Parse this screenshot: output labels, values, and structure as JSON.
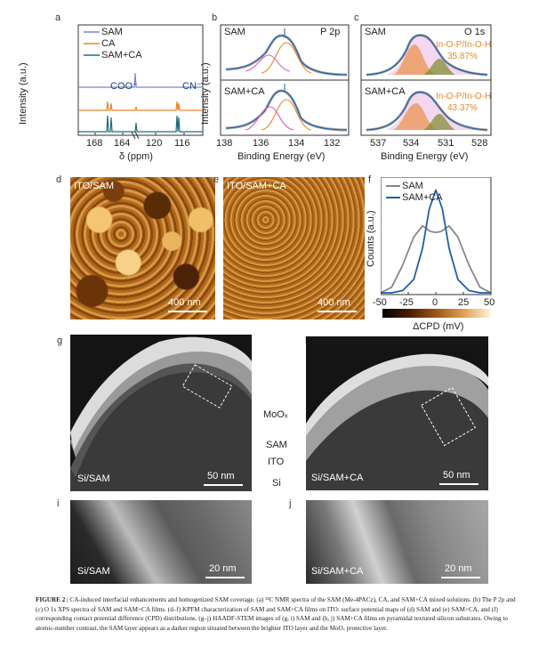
{
  "panels": {
    "a": {
      "letter": "a",
      "ylabel": "Intensity (a.u.)",
      "xlabel": "δ (ppm)",
      "ticks": [
        "168",
        "164",
        "120",
        "116"
      ],
      "legend": [
        "SAM",
        "CA",
        "SAM+CA"
      ],
      "annotations": [
        "COO⁻",
        "CN⁻"
      ]
    },
    "b": {
      "letter": "b",
      "title": "P 2p",
      "ylabel": "Intensity (a.u.)",
      "xlabel": "Binding Energy (eV)",
      "ticks": [
        "138",
        "136",
        "134",
        "132"
      ],
      "labels": [
        "SAM",
        "SAM+CA"
      ]
    },
    "c": {
      "letter": "c",
      "title": "O 1s",
      "xlabel": "Binding Energy (eV)",
      "ticks": [
        "537",
        "534",
        "531",
        "528"
      ],
      "labels": [
        "SAM",
        "SAM+CA"
      ],
      "ratio_label": "In-O-P/In-O-H",
      "ratio_sam": "35.87%",
      "ratio_samca": "43.37%"
    },
    "d": {
      "letter": "d",
      "label": "ITO/SAM",
      "scale": "400 nm"
    },
    "e": {
      "letter": "e",
      "label": "ITO/SAM+CA",
      "scale": "400 nm"
    },
    "f": {
      "letter": "f",
      "ylabel": "Counts (a.u.)",
      "xlabel": "ΔCPD (mV)",
      "ticks": [
        "-50",
        "-25",
        "0",
        "25",
        "50"
      ],
      "legend": [
        "SAM",
        "SAM+CA"
      ]
    },
    "g": {
      "letter": "g",
      "label": "Si/SAM",
      "scale": "50 nm"
    },
    "h": {
      "letter": "h",
      "label": "Si/SAM+CA",
      "scale": "50 nm"
    },
    "i": {
      "letter": "i",
      "label": "Si/SAM",
      "scale": "20 nm"
    },
    "j": {
      "letter": "j",
      "label": "Si/SAM+CA",
      "scale": "20 nm"
    },
    "layers": [
      "MoOₓ",
      "SAM",
      "ITO",
      "Si"
    ]
  },
  "colors": {
    "sam": "#7b86d8",
    "ca": "#e8862b",
    "samca": "#1a6e7a",
    "fit_blue": "#1f5fa8",
    "grey": "#888888"
  },
  "chart_data": [
    {
      "type": "line",
      "panel": "f",
      "title": "",
      "xlabel": "ΔCPD (mV)",
      "ylabel": "Counts (a.u.)",
      "xlim": [
        -50,
        50
      ],
      "series": [
        {
          "name": "SAM",
          "x": [
            -50,
            -40,
            -30,
            -20,
            -12,
            -5,
            0,
            5,
            12,
            20,
            30,
            40,
            50
          ],
          "y": [
            0.0,
            0.05,
            0.25,
            0.5,
            0.6,
            0.55,
            0.54,
            0.55,
            0.6,
            0.5,
            0.25,
            0.05,
            0.0
          ]
        },
        {
          "name": "SAM+CA",
          "x": [
            -50,
            -40,
            -30,
            -20,
            -12,
            -6,
            0,
            6,
            12,
            20,
            30,
            40,
            50
          ],
          "y": [
            0.0,
            0.0,
            0.02,
            0.12,
            0.4,
            0.75,
            0.92,
            0.75,
            0.4,
            0.12,
            0.02,
            0.0,
            0.0
          ]
        }
      ]
    }
  ],
  "caption": {
    "head": "FIGURE 2",
    "text": "CA-induced interfacial enhancements and homogenized SAM coverage. (a) ¹³C NMR spectra of the SAM (Me-4PACz), CA, and SAM+CA mixed solutions. (b) The P 2p and (c) O 1s XPS spectra of SAM and SAM+CA films. (d–f) KPFM characterization of SAM and SAM+CA films on ITO: surface potential maps of (d) SAM and (e) SAM+CA, and (f) corresponding contact potential difference (CPD) distributions. (g–j) HAADF-STEM images of (g, i) SAM and (h, j) SAM+CA films on pyramidal textured silicon substrates. Owing to atomic-number contrast, the SAM layer appears as a darker region situated between the brighter ITO layer and the MoOₓ protective layer."
  }
}
